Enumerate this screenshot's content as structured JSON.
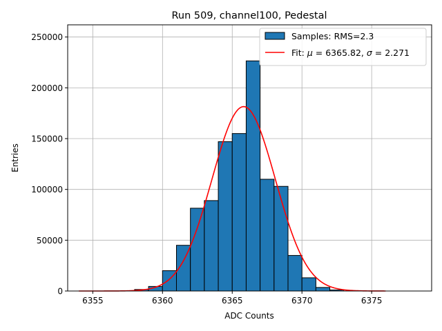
{
  "chart_data": {
    "type": "bar",
    "title": "Run 509, channel100, Pedestal",
    "xlabel": "ADC Counts",
    "ylabel": "Entries",
    "xlim": [
      6353.2,
      6379.3
    ],
    "ylim": [
      0,
      262000
    ],
    "x_ticks": [
      6355,
      6360,
      6365,
      6370,
      6375
    ],
    "y_ticks": [
      0,
      50000,
      100000,
      150000,
      200000,
      250000
    ],
    "grid": true,
    "legend_position": "top-right",
    "histogram": {
      "name": "Samples: RMS=2.3",
      "color": "#1f77b4",
      "bin_width": 1,
      "bin_left_edges": [
        6358,
        6359,
        6360,
        6361,
        6362,
        6363,
        6364,
        6365,
        6366,
        6367,
        6368,
        6369,
        6370,
        6371,
        6372
      ],
      "values": [
        1500,
        4500,
        20000,
        45000,
        81500,
        89000,
        147000,
        155000,
        226500,
        110000,
        103000,
        35000,
        13000,
        3500,
        1000
      ]
    },
    "fit": {
      "name_prefix": "Fit: ",
      "name_mu": "μ",
      "name_mid": " = 6365.82, ",
      "name_sigma": "σ",
      "name_suffix": " = 2.271",
      "color": "#ff0000",
      "mu": 6365.82,
      "sigma": 2.271,
      "amplitude": 181500,
      "x_range": [
        6354,
        6376
      ]
    }
  }
}
